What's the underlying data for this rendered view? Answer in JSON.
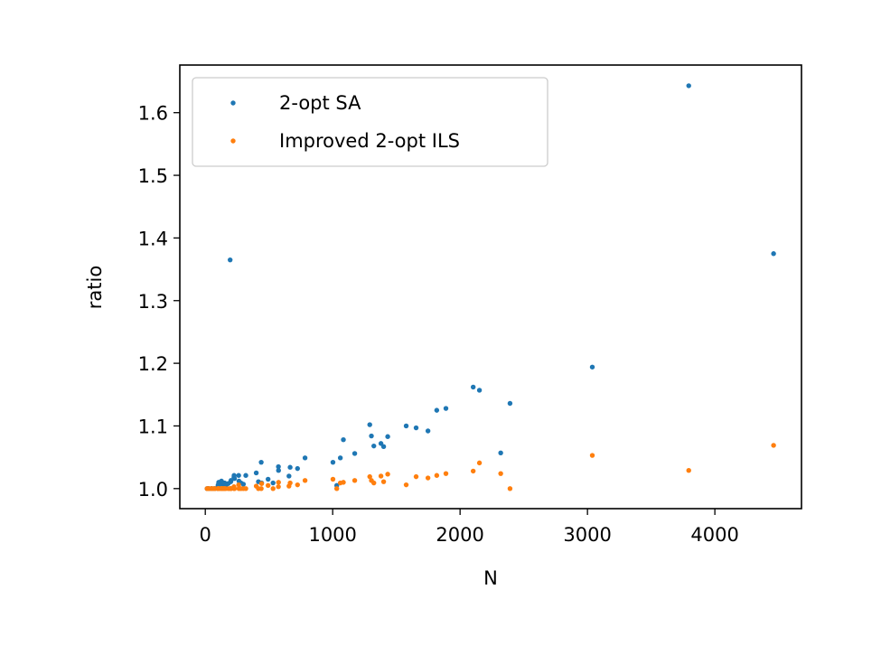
{
  "chart_data": {
    "type": "scatter",
    "title": "",
    "xlabel": "N",
    "ylabel": "ratio",
    "xlim": [
      -200,
      4680
    ],
    "ylim": [
      0.968,
      1.676
    ],
    "xticks": [
      0,
      1000,
      2000,
      3000,
      4000
    ],
    "yticks": [
      1.0,
      1.1,
      1.2,
      1.3,
      1.4,
      1.5,
      1.6
    ],
    "xtick_labels": [
      "0",
      "1000",
      "2000",
      "3000",
      "4000"
    ],
    "ytick_labels": [
      "1.0",
      "1.1",
      "1.2",
      "1.3",
      "1.4",
      "1.5",
      "1.6"
    ],
    "grid": false,
    "legend_position": "top-left",
    "series": [
      {
        "name": "2-opt SA",
        "color": "#1f77b4",
        "points": [
          [
            14,
            1.0
          ],
          [
            22,
            1.0
          ],
          [
            29,
            1.0
          ],
          [
            48,
            1.0
          ],
          [
            51,
            1.0
          ],
          [
            52,
            1.0
          ],
          [
            70,
            1.0
          ],
          [
            76,
            1.0
          ],
          [
            99,
            1.0
          ],
          [
            100,
            1.004
          ],
          [
            101,
            1.006
          ],
          [
            105,
            1.01
          ],
          [
            107,
            1.008
          ],
          [
            124,
            1.009
          ],
          [
            127,
            1.012
          ],
          [
            130,
            1.008
          ],
          [
            136,
            1.006
          ],
          [
            144,
            1.009
          ],
          [
            150,
            1.007
          ],
          [
            152,
            1.009
          ],
          [
            159,
            1.004
          ],
          [
            180,
            1.008
          ],
          [
            195,
            1.365
          ],
          [
            200,
            1.011
          ],
          [
            202,
            1.013
          ],
          [
            225,
            1.018
          ],
          [
            226,
            1.021
          ],
          [
            229,
            1.016
          ],
          [
            262,
            1.021
          ],
          [
            264,
            1.012
          ],
          [
            280,
            1.009
          ],
          [
            299,
            1.007
          ],
          [
            318,
            1.021
          ],
          [
            400,
            1.025
          ],
          [
            417,
            1.011
          ],
          [
            439,
            1.042
          ],
          [
            442,
            1.009
          ],
          [
            493,
            1.015
          ],
          [
            532,
            1.009
          ],
          [
            574,
            1.035
          ],
          [
            575,
            1.029
          ],
          [
            657,
            1.02
          ],
          [
            666,
            1.034
          ],
          [
            724,
            1.032
          ],
          [
            783,
            1.049
          ],
          [
            1002,
            1.042
          ],
          [
            1032,
            1.005
          ],
          [
            1060,
            1.049
          ],
          [
            1084,
            1.078
          ],
          [
            1173,
            1.056
          ],
          [
            1291,
            1.102
          ],
          [
            1304,
            1.084
          ],
          [
            1323,
            1.068
          ],
          [
            1379,
            1.072
          ],
          [
            1400,
            1.067
          ],
          [
            1432,
            1.083
          ],
          [
            1577,
            1.1
          ],
          [
            1655,
            1.097
          ],
          [
            1748,
            1.092
          ],
          [
            1817,
            1.125
          ],
          [
            1889,
            1.128
          ],
          [
            2103,
            1.162
          ],
          [
            2152,
            1.157
          ],
          [
            2319,
            1.057
          ],
          [
            2392,
            1.136
          ],
          [
            3038,
            1.194
          ],
          [
            3795,
            1.643
          ],
          [
            4461,
            1.375
          ]
        ]
      },
      {
        "name": "Improved 2-opt ILS",
        "color": "#ff7f0e",
        "points": [
          [
            14,
            1.0
          ],
          [
            22,
            1.0
          ],
          [
            29,
            1.0
          ],
          [
            48,
            1.0
          ],
          [
            51,
            1.0
          ],
          [
            52,
            1.0
          ],
          [
            70,
            1.0
          ],
          [
            76,
            1.0
          ],
          [
            99,
            1.0
          ],
          [
            100,
            1.0
          ],
          [
            101,
            1.0
          ],
          [
            105,
            1.0
          ],
          [
            107,
            1.0
          ],
          [
            124,
            1.0
          ],
          [
            127,
            1.0
          ],
          [
            130,
            1.0
          ],
          [
            136,
            1.0
          ],
          [
            144,
            1.0
          ],
          [
            150,
            1.0
          ],
          [
            152,
            1.0
          ],
          [
            159,
            1.0
          ],
          [
            180,
            1.0
          ],
          [
            195,
            1.0
          ],
          [
            200,
            1.0
          ],
          [
            202,
            1.0
          ],
          [
            225,
            1.003
          ],
          [
            226,
            1.0
          ],
          [
            229,
            1.0
          ],
          [
            262,
            1.006
          ],
          [
            264,
            1.0
          ],
          [
            280,
            1.0
          ],
          [
            299,
            1.0
          ],
          [
            318,
            1.0
          ],
          [
            400,
            1.004
          ],
          [
            417,
            1.0
          ],
          [
            439,
            1.0
          ],
          [
            442,
            1.008
          ],
          [
            493,
            1.005
          ],
          [
            532,
            1.0
          ],
          [
            574,
            1.003
          ],
          [
            575,
            1.01
          ],
          [
            657,
            1.004
          ],
          [
            666,
            1.009
          ],
          [
            724,
            1.006
          ],
          [
            783,
            1.013
          ],
          [
            1002,
            1.015
          ],
          [
            1032,
            1.0
          ],
          [
            1060,
            1.009
          ],
          [
            1084,
            1.01
          ],
          [
            1173,
            1.013
          ],
          [
            1291,
            1.019
          ],
          [
            1304,
            1.013
          ],
          [
            1323,
            1.009
          ],
          [
            1379,
            1.02
          ],
          [
            1400,
            1.011
          ],
          [
            1432,
            1.023
          ],
          [
            1577,
            1.006
          ],
          [
            1655,
            1.019
          ],
          [
            1748,
            1.017
          ],
          [
            1817,
            1.021
          ],
          [
            1889,
            1.024
          ],
          [
            2103,
            1.028
          ],
          [
            2152,
            1.041
          ],
          [
            2319,
            1.024
          ],
          [
            2392,
            1.0
          ],
          [
            3038,
            1.053
          ],
          [
            3795,
            1.029
          ],
          [
            4461,
            1.069
          ]
        ]
      }
    ]
  }
}
